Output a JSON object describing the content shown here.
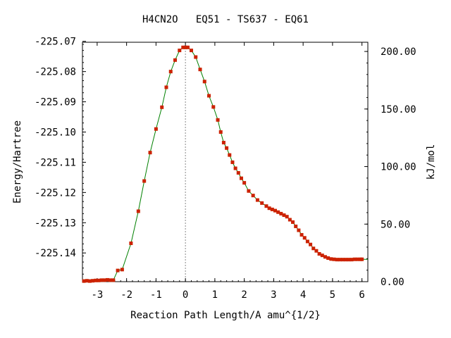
{
  "chart_data": {
    "type": "line",
    "title": "H4CN2O   EQ51 - TS637 - EQ61",
    "xlabel": "Reaction Path Length/A amu^{1/2}",
    "ylabel": "Energy/Hartree",
    "y2label": "kJ/mol",
    "xlim": [
      -3.5,
      6.2
    ],
    "ylim": [
      -225.1495,
      -225.0703
    ],
    "y2lim": [
      0,
      208
    ],
    "x_ticks": [
      "-3",
      "-2",
      "-1",
      "0",
      "1",
      "2",
      "3",
      "4",
      "5",
      "6"
    ],
    "y_ticks": [
      "-225.07",
      "-225.08",
      "-225.09",
      "-225.10",
      "-225.11",
      "-225.12",
      "-225.13",
      "-225.14"
    ],
    "y2_ticks": [
      "200.00",
      "150.00",
      "100.00",
      "50.00",
      "0.00"
    ],
    "ts_line_x": 0,
    "line_color": "#008000",
    "marker_color": "#cc2200",
    "series": [
      {
        "x": [
          -3.45,
          -3.35,
          -3.25,
          -3.15,
          -3.05,
          -2.95,
          -2.85,
          -2.75,
          -2.65,
          -2.55,
          -2.45,
          -2.3,
          -2.15,
          -1.85,
          -1.6,
          -1.4,
          -1.2,
          -1.0,
          -0.8,
          -0.65,
          -0.5,
          -0.35,
          -0.2,
          -0.08,
          0.0,
          0.08,
          0.2,
          0.35,
          0.5,
          0.65,
          0.8,
          0.95,
          1.1,
          1.2,
          1.3,
          1.4,
          1.5,
          1.6,
          1.7,
          1.8,
          1.9,
          2.0,
          2.15,
          2.3,
          2.45,
          2.6,
          2.75,
          2.85,
          2.95,
          3.05,
          3.15,
          3.25,
          3.35,
          3.45,
          3.55,
          3.65,
          3.75,
          3.85,
          3.95,
          4.05,
          4.15,
          4.25,
          4.35,
          4.45,
          4.55,
          4.65,
          4.75,
          4.85,
          4.95,
          5.05,
          5.15,
          5.25,
          5.35,
          5.45,
          5.55,
          5.65,
          5.75,
          5.85,
          5.95,
          6.0
        ],
        "y": [
          -225.1493,
          -225.1492,
          -225.1493,
          -225.1492,
          -225.1491,
          -225.1491,
          -225.149,
          -225.149,
          -225.1489,
          -225.149,
          -225.149,
          -225.1458,
          -225.1455,
          -225.1368,
          -225.1262,
          -225.1162,
          -225.1068,
          -225.099,
          -225.0918,
          -225.0852,
          -225.08,
          -225.0762,
          -225.073,
          -225.072,
          -225.072,
          -225.072,
          -225.073,
          -225.0752,
          -225.0793,
          -225.0833,
          -225.088,
          -225.0917,
          -225.096,
          -225.1,
          -225.1035,
          -225.1053,
          -225.1076,
          -225.11,
          -225.112,
          -225.1135,
          -225.1153,
          -225.1168,
          -225.1195,
          -225.121,
          -225.1225,
          -225.1235,
          -225.1245,
          -225.1252,
          -225.1256,
          -225.126,
          -225.1265,
          -225.127,
          -225.1275,
          -225.128,
          -225.129,
          -225.1298,
          -225.1312,
          -225.1325,
          -225.134,
          -225.135,
          -225.1362,
          -225.1372,
          -225.1385,
          -225.1393,
          -225.1403,
          -225.1408,
          -225.1413,
          -225.1417,
          -225.142,
          -225.1421,
          -225.1422,
          -225.1422,
          -225.1422,
          -225.1422,
          -225.1422,
          -225.1422,
          -225.1421,
          -225.1421,
          -225.1421,
          -225.1421
        ]
      }
    ]
  }
}
